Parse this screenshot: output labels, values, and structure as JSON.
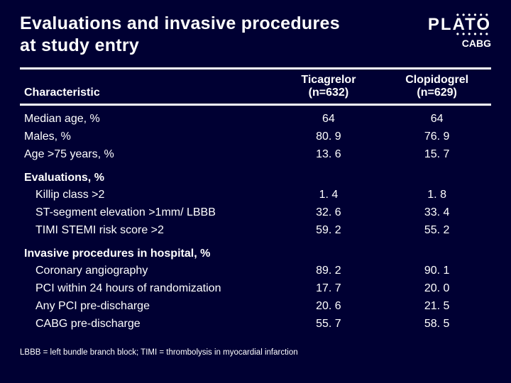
{
  "title_line1": "Evaluations and invasive procedures",
  "title_line2": "at study entry",
  "brand": "PLATO",
  "subtitle": "CABG",
  "columns": {
    "char": "Characteristic",
    "ticagrelor_l1": "Ticagrelor",
    "ticagrelor_l2": "(n=632)",
    "clopidogrel_l1": "Clopidogrel",
    "clopidogrel_l2": "(n=629)"
  },
  "rows": {
    "r0": {
      "label": "Median age, %",
      "t": "64",
      "c": "64"
    },
    "r1": {
      "label": "Males, %",
      "t": "80. 9",
      "c": "76. 9"
    },
    "r2": {
      "label": "Age >75 years, %",
      "t": "13. 6",
      "c": "15. 7"
    },
    "s1": {
      "label": "Evaluations, %"
    },
    "r3": {
      "label": "Killip class >2",
      "t": "1. 4",
      "c": "1. 8"
    },
    "r4": {
      "label": "ST-segment elevation >1mm/ LBBB",
      "t": "32. 6",
      "c": "33. 4"
    },
    "r5": {
      "label": "TIMI STEMI risk score >2",
      "t": "59. 2",
      "c": "55. 2"
    },
    "s2": {
      "label": "Invasive procedures in hospital, %"
    },
    "r6": {
      "label": "Coronary angiography",
      "t": "89. 2",
      "c": "90. 1"
    },
    "r7": {
      "label": "PCI within 24 hours of randomization",
      "t": "17. 7",
      "c": "20. 0"
    },
    "r8": {
      "label": "Any PCI pre-discharge",
      "t": "20. 6",
      "c": "21. 5"
    },
    "r9": {
      "label": "CABG pre-discharge",
      "t": "55. 7",
      "c": "58. 5"
    }
  },
  "footnote": "LBBB = left bundle branch block; TIMI = thrombolysis in myocardial infarction"
}
